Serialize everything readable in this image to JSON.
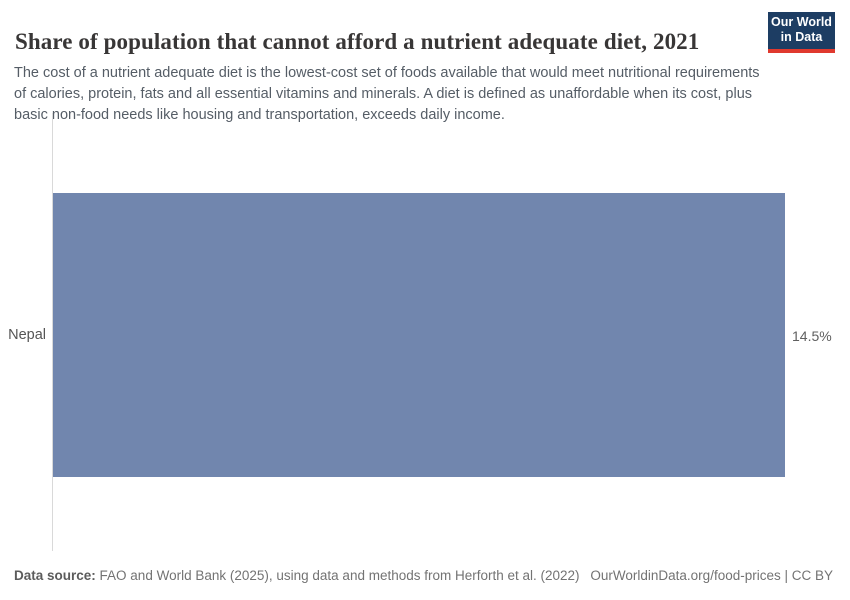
{
  "header": {
    "title": "Share of population that cannot afford a nutrient adequate diet, 2021",
    "subtitle": "The cost of a nutrient adequate diet is the lowest-cost set of foods available that would meet nutritional requirements of calories, protein, fats and all essential vitamins and minerals. A diet is defined as unaffordable when its cost, plus basic non-food needs like housing and transportation, exceeds daily income."
  },
  "logo": {
    "line1": "Our World",
    "line2": "in Data",
    "bg_color": "#1d3d63",
    "accent_color": "#e0392e"
  },
  "chart_data": {
    "type": "bar",
    "orientation": "horizontal",
    "title": "Share of population that cannot afford a nutrient adequate diet, 2021",
    "categories": [
      "Nepal"
    ],
    "values": [
      14.5
    ],
    "value_labels": [
      "14.5%"
    ],
    "xlabel": "",
    "ylabel": "",
    "xlim": [
      0,
      14.5
    ],
    "grid": false,
    "legend": false,
    "bar_color": "#7186ae",
    "axis_line_color": "#d9d9d9"
  },
  "footer": {
    "source_label": "Data source:",
    "source_text": "FAO and World Bank (2025), using data and methods from Herforth et al. (2022)",
    "link_text": "OurWorldinData.org/food-prices | CC BY"
  }
}
